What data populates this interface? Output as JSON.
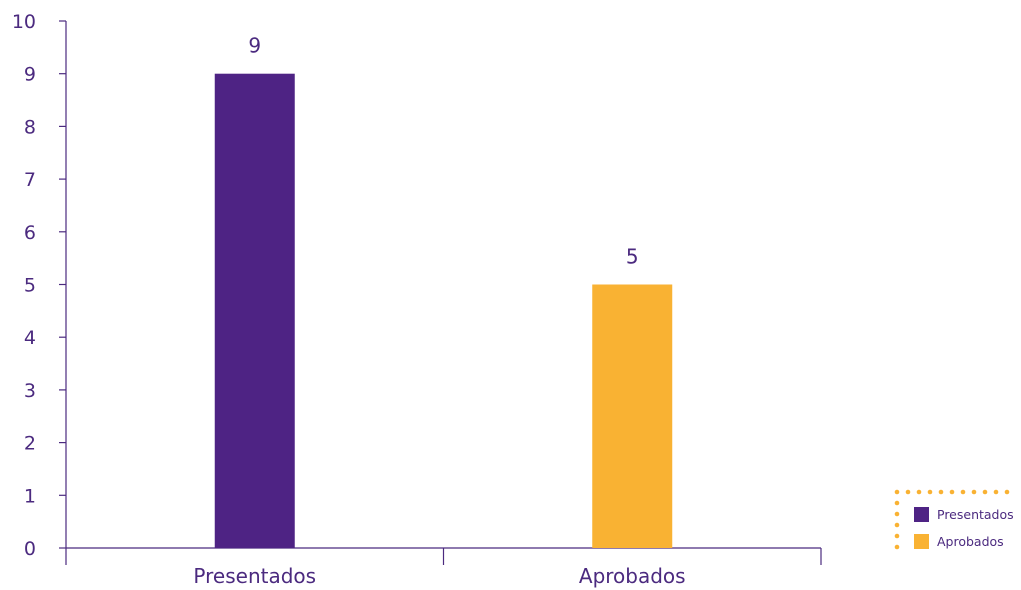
{
  "chart_data": {
    "type": "bar",
    "categories": [
      "Presentados",
      "Aprobados"
    ],
    "values": [
      9,
      5
    ],
    "colors": [
      "#4e2384",
      "#f9b233"
    ],
    "ylim": [
      0,
      10
    ],
    "yticks": [
      0,
      1,
      2,
      3,
      4,
      5,
      6,
      7,
      8,
      9,
      10
    ],
    "data_labels": [
      "9",
      "5"
    ],
    "grid": false,
    "legend": {
      "placement": "bottom-right",
      "entries": [
        {
          "label": "Presentados",
          "color": "#4e2384"
        },
        {
          "label": "Aprobados",
          "color": "#f9b233"
        }
      ],
      "border_color": "#f9b233"
    },
    "axis_color": "#4b2a7f"
  }
}
